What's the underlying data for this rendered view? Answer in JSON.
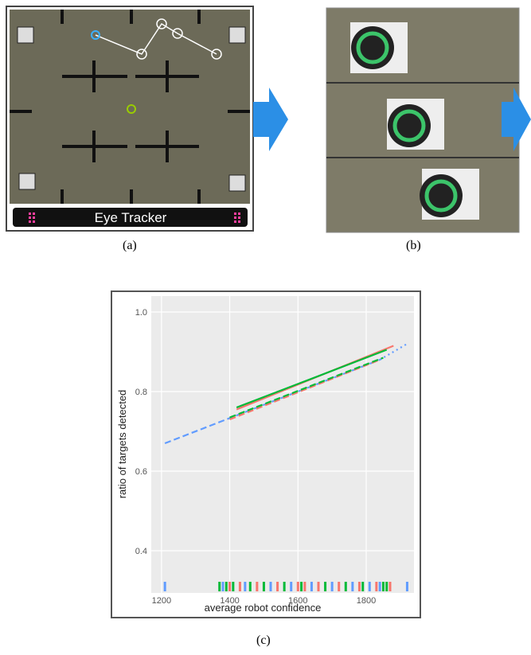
{
  "panels": {
    "a": {
      "label": "(a)",
      "caption": "Eye Tracker"
    },
    "b": {
      "label": "(b)"
    },
    "c": {
      "label": "(c)"
    }
  },
  "chart_data": {
    "type": "line",
    "x_label": "average robot confidence",
    "y_label": "ratio of targets detected",
    "xlim": [
      1170,
      1940
    ],
    "ylim": [
      0.294,
      1.04
    ],
    "xticks": [
      1200,
      1400,
      1600,
      1800
    ],
    "yticks": [
      0.4,
      0.6,
      0.8,
      {
        "value": 1,
        "label": "1.0"
      }
    ],
    "grid": true,
    "series": [
      {
        "color": "#619cff",
        "dash": "dashed",
        "x": [
          1210,
          1840
        ],
        "values": [
          0.67,
          0.88
        ]
      },
      {
        "color": "#619cff",
        "dash": "dotted",
        "x": [
          1840,
          1920
        ],
        "values": [
          0.88,
          0.92
        ]
      },
      {
        "color": "#f8766d",
        "dash": "dashed",
        "x": [
          1400,
          1840
        ],
        "values": [
          0.73,
          0.88
        ]
      },
      {
        "color": "#00ba38",
        "dash": "dashed",
        "x": [
          1400,
          1850
        ],
        "values": [
          0.735,
          0.885
        ]
      },
      {
        "color": "#f8766d",
        "dash": "solid",
        "x": [
          1420,
          1880
        ],
        "values": [
          0.755,
          0.915
        ]
      },
      {
        "color": "#00ba38",
        "dash": "solid",
        "x": [
          1420,
          1860
        ],
        "values": [
          0.76,
          0.905
        ]
      }
    ],
    "rug": [
      {
        "color": "#619cff",
        "x": [
          1210,
          1380,
          1400,
          1445,
          1520,
          1580,
          1640,
          1700,
          1760,
          1810,
          1840,
          1920
        ]
      },
      {
        "color": "#f8766d",
        "x": [
          1400,
          1430,
          1480,
          1540,
          1600,
          1620,
          1660,
          1720,
          1780,
          1830,
          1870
        ]
      },
      {
        "color": "#00ba38",
        "x": [
          1370,
          1390,
          1410,
          1460,
          1500,
          1560,
          1610,
          1680,
          1740,
          1790,
          1850,
          1860
        ]
      }
    ]
  }
}
